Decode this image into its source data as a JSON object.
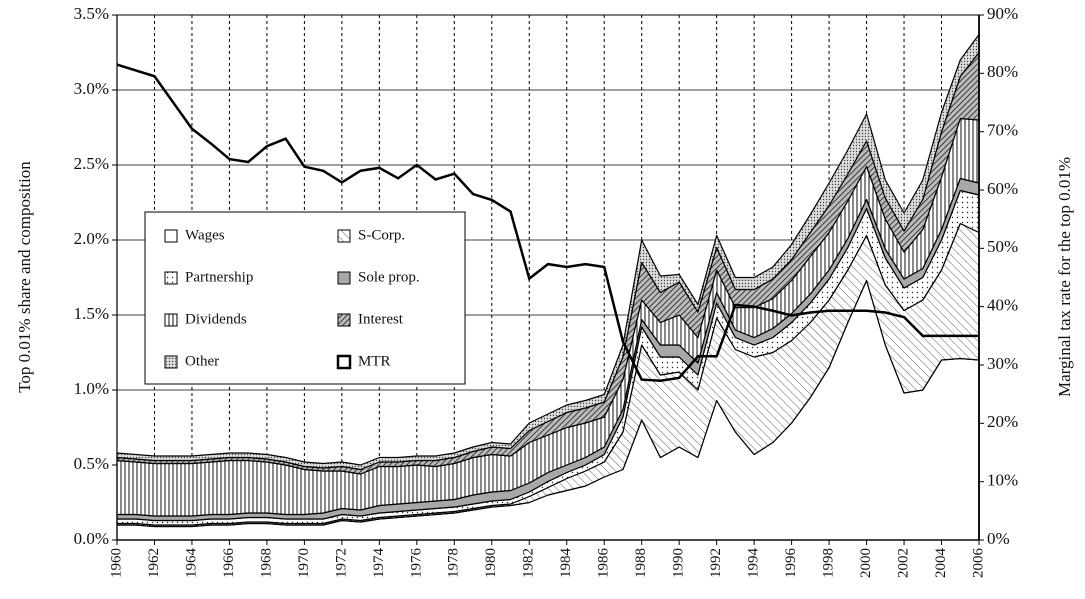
{
  "chart_data": {
    "type": "stacked-area",
    "y_label": "Top 0.01% share and composition",
    "y2_label": "Marginal tax rate for the top 0.01%",
    "x": [
      1960,
      1961,
      1962,
      1963,
      1964,
      1965,
      1966,
      1967,
      1968,
      1969,
      1970,
      1971,
      1972,
      1973,
      1974,
      1975,
      1976,
      1977,
      1978,
      1979,
      1980,
      1981,
      1982,
      1983,
      1984,
      1985,
      1986,
      1987,
      1988,
      1989,
      1990,
      1991,
      1992,
      1993,
      1994,
      1995,
      1996,
      1997,
      1998,
      1999,
      2000,
      2001,
      2002,
      2003,
      2004,
      2005,
      2006
    ],
    "xlim": [
      1960,
      2006
    ],
    "xticks": [
      1960,
      1962,
      1964,
      1966,
      1968,
      1970,
      1972,
      1974,
      1976,
      1978,
      1980,
      1982,
      1984,
      1986,
      1988,
      1990,
      1992,
      1994,
      1996,
      1998,
      2000,
      2002,
      2004,
      2006
    ],
    "ylim": [
      0,
      3.5
    ],
    "yticks": [
      {
        "value": 0,
        "label": "0.0%"
      },
      {
        "value": 0.5,
        "label": "0.5%"
      },
      {
        "value": 1,
        "label": "1.0%"
      },
      {
        "value": 1.5,
        "label": "1.5%"
      },
      {
        "value": 2,
        "label": "2.0%"
      },
      {
        "value": 2.5,
        "label": "2.5%"
      },
      {
        "value": 3,
        "label": "3.0%"
      },
      {
        "value": 3.5,
        "label": "3.5%"
      }
    ],
    "y2lim": [
      0,
      90
    ],
    "y2ticks": [
      {
        "value": 0,
        "label": "0%"
      },
      {
        "value": 10,
        "label": "10%"
      },
      {
        "value": 20,
        "label": "20%"
      },
      {
        "value": 30,
        "label": "30%"
      },
      {
        "value": 40,
        "label": "40%"
      },
      {
        "value": 50,
        "label": "50%"
      },
      {
        "value": 60,
        "label": "60%"
      },
      {
        "value": 70,
        "label": "70%"
      },
      {
        "value": 80,
        "label": "80%"
      },
      {
        "value": 90,
        "label": "90%"
      }
    ],
    "grid": true,
    "series": [
      {
        "name": "Wages",
        "pattern": "white",
        "values": [
          0.1,
          0.1,
          0.09,
          0.09,
          0.09,
          0.1,
          0.1,
          0.11,
          0.11,
          0.1,
          0.1,
          0.1,
          0.13,
          0.12,
          0.14,
          0.15,
          0.16,
          0.17,
          0.18,
          0.2,
          0.22,
          0.23,
          0.25,
          0.3,
          0.33,
          0.36,
          0.42,
          0.47,
          0.8,
          0.55,
          0.62,
          0.55,
          0.93,
          0.72,
          0.57,
          0.65,
          0.78,
          0.95,
          1.15,
          1.45,
          1.73,
          1.3,
          0.98,
          1.0,
          1.2,
          1.21,
          1.2
        ]
      },
      {
        "name": "S-Corp.",
        "pattern": "diag",
        "values": [
          0.01,
          0.01,
          0.01,
          0.01,
          0.01,
          0.01,
          0.01,
          0.01,
          0.01,
          0.01,
          0.01,
          0.01,
          0.01,
          0.01,
          0.01,
          0.01,
          0.01,
          0.01,
          0.01,
          0.01,
          0.01,
          0.01,
          0.04,
          0.05,
          0.08,
          0.1,
          0.1,
          0.25,
          0.5,
          0.55,
          0.5,
          0.45,
          0.55,
          0.55,
          0.65,
          0.6,
          0.55,
          0.5,
          0.45,
          0.35,
          0.3,
          0.4,
          0.55,
          0.6,
          0.6,
          0.9,
          0.85
        ]
      },
      {
        "name": "Partnership",
        "pattern": "dots",
        "values": [
          0.03,
          0.03,
          0.03,
          0.03,
          0.03,
          0.03,
          0.03,
          0.03,
          0.03,
          0.03,
          0.03,
          0.03,
          0.03,
          0.03,
          0.03,
          0.03,
          0.03,
          0.03,
          0.03,
          0.03,
          0.03,
          0.03,
          0.03,
          0.04,
          0.04,
          0.04,
          0.05,
          0.1,
          0.12,
          0.12,
          0.1,
          0.1,
          0.1,
          0.08,
          0.08,
          0.1,
          0.12,
          0.13,
          0.14,
          0.15,
          0.18,
          0.18,
          0.15,
          0.15,
          0.2,
          0.22,
          0.25
        ]
      },
      {
        "name": "Sole prop.",
        "pattern": "gray",
        "values": [
          0.03,
          0.03,
          0.03,
          0.03,
          0.03,
          0.03,
          0.03,
          0.03,
          0.03,
          0.03,
          0.03,
          0.04,
          0.04,
          0.04,
          0.05,
          0.05,
          0.05,
          0.05,
          0.05,
          0.06,
          0.06,
          0.06,
          0.06,
          0.06,
          0.05,
          0.05,
          0.05,
          0.05,
          0.05,
          0.08,
          0.08,
          0.08,
          0.07,
          0.05,
          0.05,
          0.06,
          0.06,
          0.06,
          0.06,
          0.06,
          0.06,
          0.06,
          0.06,
          0.06,
          0.07,
          0.08,
          0.08
        ]
      },
      {
        "name": "Dividends",
        "pattern": "vert",
        "values": [
          0.36,
          0.35,
          0.35,
          0.35,
          0.35,
          0.35,
          0.36,
          0.35,
          0.34,
          0.33,
          0.3,
          0.28,
          0.25,
          0.24,
          0.26,
          0.25,
          0.25,
          0.23,
          0.24,
          0.25,
          0.25,
          0.23,
          0.27,
          0.25,
          0.25,
          0.23,
          0.2,
          0.2,
          0.13,
          0.15,
          0.2,
          0.17,
          0.15,
          0.15,
          0.2,
          0.2,
          0.22,
          0.25,
          0.25,
          0.25,
          0.22,
          0.2,
          0.18,
          0.26,
          0.35,
          0.4,
          0.42
        ]
      },
      {
        "name": "Interest",
        "pattern": "dense",
        "values": [
          0.02,
          0.02,
          0.02,
          0.02,
          0.02,
          0.02,
          0.02,
          0.02,
          0.02,
          0.02,
          0.02,
          0.02,
          0.03,
          0.03,
          0.03,
          0.03,
          0.03,
          0.04,
          0.04,
          0.04,
          0.05,
          0.05,
          0.08,
          0.09,
          0.1,
          0.1,
          0.1,
          0.15,
          0.25,
          0.2,
          0.22,
          0.17,
          0.15,
          0.12,
          0.12,
          0.13,
          0.14,
          0.16,
          0.18,
          0.18,
          0.17,
          0.14,
          0.14,
          0.2,
          0.3,
          0.28,
          0.45
        ]
      },
      {
        "name": "Other",
        "pattern": "speck",
        "values": [
          0.03,
          0.03,
          0.03,
          0.03,
          0.03,
          0.03,
          0.03,
          0.03,
          0.03,
          0.03,
          0.03,
          0.03,
          0.03,
          0.03,
          0.03,
          0.03,
          0.03,
          0.03,
          0.03,
          0.03,
          0.03,
          0.03,
          0.05,
          0.05,
          0.05,
          0.05,
          0.05,
          0.08,
          0.15,
          0.11,
          0.05,
          0.05,
          0.08,
          0.08,
          0.08,
          0.08,
          0.1,
          0.12,
          0.15,
          0.16,
          0.18,
          0.12,
          0.12,
          0.13,
          0.13,
          0.11,
          0.12
        ]
      },
      {
        "name": "MTR",
        "axis": "y2",
        "pattern": "line",
        "values": [
          81.5,
          80.5,
          79.5,
          75,
          70.5,
          68,
          65.3,
          64.8,
          67.5,
          68.8,
          64,
          63.3,
          61.3,
          63.3,
          63.8,
          62,
          64.3,
          61.8,
          62.8,
          59.3,
          58.3,
          56.3,
          44.8,
          47.3,
          46.8,
          47.3,
          46.8,
          34,
          27.5,
          27.3,
          27.8,
          31.5,
          31.5,
          40.3,
          40,
          39.3,
          38.5,
          39,
          39.3,
          39.3,
          39.3,
          39,
          38.2,
          35,
          35,
          35,
          35
        ]
      }
    ]
  }
}
